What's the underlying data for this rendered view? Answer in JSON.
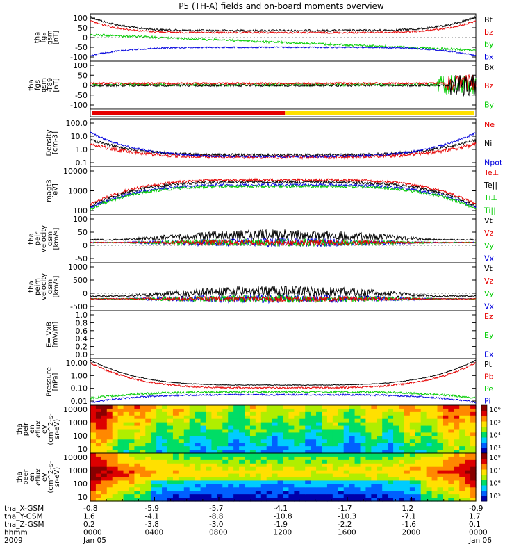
{
  "title": "P5 (TH-A) fields and on-board moments overview",
  "colors": {
    "black": "#000000",
    "red": "#e60000",
    "green": "#00cc00",
    "blue": "#0000dd",
    "orange": "#ff8800",
    "yellow": "#ffe000"
  },
  "chart_data": [
    {
      "type": "line",
      "panel": "fgs_gsm",
      "ylabel_lines": [
        "tha",
        "fgs",
        "gsm",
        "[nT]"
      ],
      "ylim": [
        -100,
        100
      ],
      "yticks": [
        "100",
        "50",
        "0",
        "-50",
        "-100"
      ],
      "series": [
        {
          "name": "Bt",
          "color": "black"
        },
        {
          "name": "bz",
          "color": "red"
        },
        {
          "name": "by",
          "color": "green"
        },
        {
          "name": "bx",
          "color": "blue"
        }
      ]
    },
    {
      "type": "line",
      "panel": "fgs_dsl_bandpass",
      "ylabel_lines": [
        "tha",
        "fgs",
        "gsm",
        "-T89",
        "[nT]"
      ],
      "ylim": [
        -100,
        100
      ],
      "yticks": [
        "100",
        "50",
        "0",
        "-50",
        "-100"
      ],
      "series": [
        {
          "name": "Bx",
          "color": "black"
        },
        {
          "name": "Bz",
          "color": "red"
        },
        {
          "name": "By",
          "color": "green"
        }
      ]
    },
    {
      "type": "bar",
      "panel": "mode_bar",
      "segments": [
        {
          "from": 0.0,
          "to": 0.505,
          "color": "red"
        },
        {
          "from": 0.505,
          "to": 1.0,
          "color": "yellow"
        }
      ]
    },
    {
      "type": "line",
      "panel": "density",
      "yscale": "log",
      "ylabel_lines": [
        "Density",
        "[cm-3]"
      ],
      "ylim": [
        0.1,
        100
      ],
      "yticks": [
        "100.0",
        "10.0",
        "1.0",
        "0.1"
      ],
      "series": [
        {
          "name": "Ne",
          "color": "red"
        },
        {
          "name": "Ni",
          "color": "black"
        },
        {
          "name": "Npot",
          "color": "blue"
        }
      ]
    },
    {
      "type": "line",
      "panel": "temperature",
      "yscale": "log",
      "ylabel_lines": [
        "magt3",
        "[eV]"
      ],
      "ylim": [
        30,
        10000
      ],
      "yticks": [
        "10000",
        "1000",
        "100"
      ],
      "series": [
        {
          "name": "Te⊥",
          "color": "red"
        },
        {
          "name": "Te||",
          "color": "black"
        },
        {
          "name": "Ti⊥",
          "color": "green"
        },
        {
          "name": "Ti||",
          "color": "green"
        }
      ]
    },
    {
      "type": "line",
      "panel": "peir_velocity",
      "ylabel_lines": [
        "tha",
        "peir",
        "velocity",
        "gsm",
        "[km/s]"
      ],
      "ylim": [
        -50,
        100
      ],
      "yticks": [
        "100",
        "50",
        "0",
        "-50"
      ],
      "series": [
        {
          "name": "Vt",
          "color": "black"
        },
        {
          "name": "Vz",
          "color": "red"
        },
        {
          "name": "Vy",
          "color": "green"
        },
        {
          "name": "Vx",
          "color": "blue"
        }
      ]
    },
    {
      "type": "line",
      "panel": "peim_velocity",
      "ylabel_lines": [
        "tha",
        "peim",
        "velocity",
        "gsm",
        "[km/s]"
      ],
      "ylim": [
        -500,
        1000
      ],
      "yticks": [
        "1000",
        "500",
        "0",
        "-500"
      ],
      "series": [
        {
          "name": "Vt",
          "color": "black"
        },
        {
          "name": "Vz",
          "color": "red"
        },
        {
          "name": "Vy",
          "color": "green"
        },
        {
          "name": "Vx",
          "color": "blue"
        }
      ]
    },
    {
      "type": "line",
      "panel": "efield",
      "ylabel_lines": [
        "E=-VxB",
        "[mV/m]"
      ],
      "ylim": [
        0,
        1.0
      ],
      "yticks": [
        "1.0",
        "0.8",
        "0.6",
        "0.4",
        "0.2",
        "0.0"
      ],
      "series": [
        {
          "name": "Ez",
          "color": "red"
        },
        {
          "name": "Ey",
          "color": "green"
        },
        {
          "name": "Ex",
          "color": "blue"
        }
      ]
    },
    {
      "type": "line",
      "panel": "pressure",
      "yscale": "log",
      "ylabel_lines": [
        "Pressure",
        "[nPa]"
      ],
      "ylim": [
        0.01,
        30
      ],
      "yticks": [
        "10.00",
        "1.00",
        "0.10",
        "0.01"
      ],
      "series": [
        {
          "name": "Pt",
          "color": "black"
        },
        {
          "name": "Pb",
          "color": "red"
        },
        {
          "name": "Pe",
          "color": "green"
        },
        {
          "name": "Pi",
          "color": "blue"
        }
      ]
    },
    {
      "type": "heatmap",
      "panel": "ion_spectrogram",
      "yscale": "log",
      "ylabel_lines": [
        "tha",
        "peir",
        "en",
        "eflux",
        "eV",
        "(cm^2-s-",
        "sr-eV)"
      ],
      "ylim": [
        10,
        20000
      ],
      "yticks": [
        "10000",
        "1000",
        "100",
        "10"
      ],
      "colorbar_ticks": [
        "10⁶",
        "10⁵",
        "10⁴",
        "10³"
      ]
    },
    {
      "type": "heatmap",
      "panel": "electron_spectrogram",
      "yscale": "log",
      "ylabel_lines": [
        "tha",
        "peer",
        "en",
        "eflux",
        "eV",
        "(cm^2-s-",
        "sr-eV)"
      ],
      "ylim": [
        10,
        20000
      ],
      "yticks": [
        "10000",
        "1000",
        "100",
        "10"
      ],
      "colorbar_ticks": [
        "10⁸",
        "10⁷",
        "10⁶",
        "10⁵"
      ]
    }
  ],
  "xaxis": {
    "rows": [
      {
        "label": "tha_X-GSM",
        "values": [
          "-0.8",
          "-5.9",
          "-5.7",
          "-4.1",
          "-1.7",
          "1.2",
          "-0.9"
        ]
      },
      {
        "label": "tha_Y-GSM",
        "values": [
          "1.6",
          "-4.1",
          "-8.8",
          "-10.8",
          "-10.3",
          "-7.1",
          "1.7"
        ]
      },
      {
        "label": "tha_Z-GSM",
        "values": [
          "0.2",
          "-3.8",
          "-3.0",
          "-1.9",
          "-2.2",
          "-1.6",
          "0.1"
        ]
      },
      {
        "label": "hhmm",
        "values": [
          "0000",
          "0400",
          "0800",
          "1200",
          "1600",
          "2000",
          "0000"
        ]
      },
      {
        "label": "2009",
        "values": [
          "Jan 05",
          "",
          "",
          "",
          "",
          "",
          "Jan 06"
        ]
      }
    ]
  }
}
